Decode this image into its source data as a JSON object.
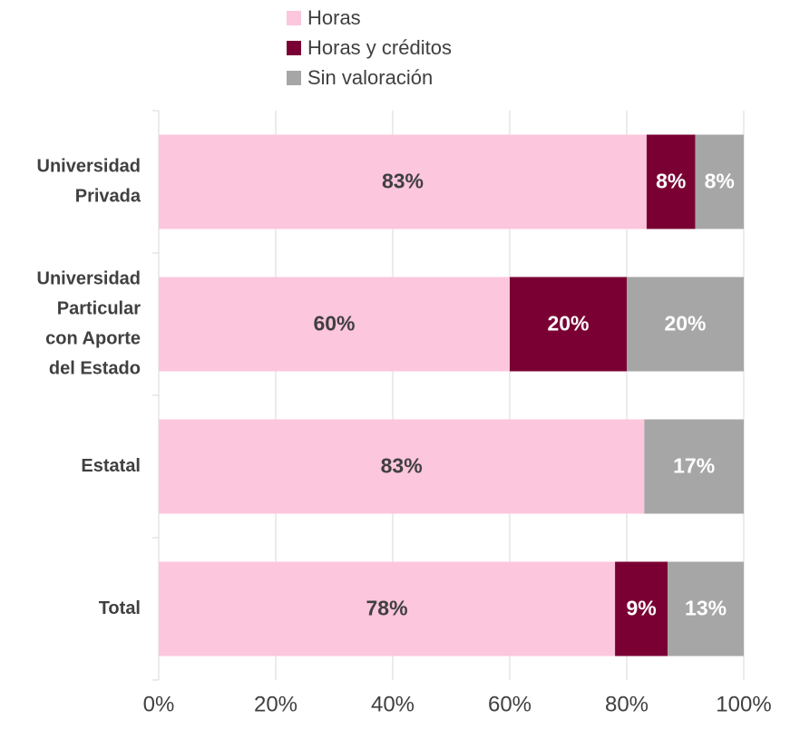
{
  "chart_data": {
    "type": "stacked_barh",
    "categories": [
      [
        "Universidad",
        "Privada"
      ],
      [
        "Universidad",
        "Particular",
        "con Aporte",
        "del Estado"
      ],
      [
        "Estatal"
      ],
      [
        "Total"
      ]
    ],
    "series": [
      {
        "name": "Horas",
        "color": "#fcc6dd",
        "values": [
          83.4,
          60,
          83,
          78
        ],
        "value_labels": [
          "83%",
          "60%",
          "83%",
          "78%"
        ]
      },
      {
        "name": "Horas y créditos",
        "color": "#7a0033",
        "values": [
          8.3,
          20,
          0,
          9
        ],
        "value_labels": [
          "8%",
          "20%",
          null,
          "9%"
        ]
      },
      {
        "name": "Sin valoración",
        "color": "#a6a6a6",
        "values": [
          8.3,
          20,
          17,
          13
        ],
        "value_labels": [
          "8%",
          "20%",
          "17%",
          "13%"
        ]
      }
    ],
    "xlim": [
      0,
      100
    ],
    "xticks": [
      {
        "value": 0,
        "label": "0%"
      },
      {
        "value": 20,
        "label": "20%"
      },
      {
        "value": 40,
        "label": "40%"
      },
      {
        "value": 60,
        "label": "60%"
      },
      {
        "value": 80,
        "label": "80%"
      },
      {
        "value": 100,
        "label": "100%"
      }
    ],
    "grid": true,
    "legend": "top"
  }
}
